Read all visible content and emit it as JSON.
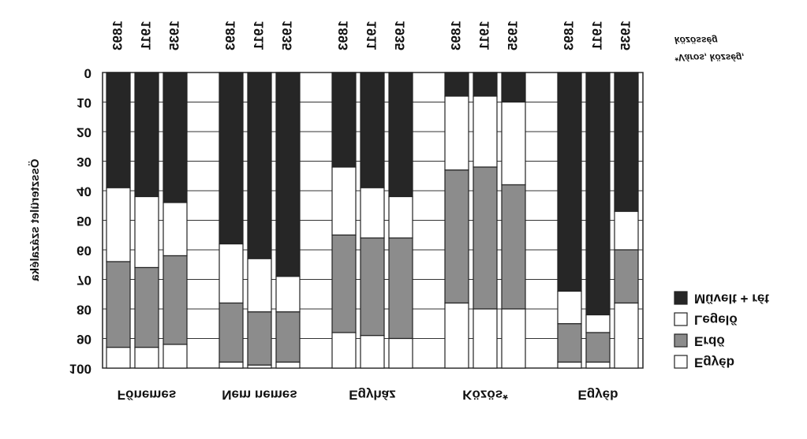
{
  "chart_data": {
    "type": "stacked_bar",
    "y_label": "Összterület százaléka",
    "note": [
      "*Város, község,",
      "közösség"
    ],
    "groups": [
      "Főnemes",
      "Nem nemes",
      "Egyház",
      "Közös*",
      "Egyéb"
    ],
    "categories": [
      "1893",
      "1911",
      "1935",
      "1893",
      "1911",
      "1935",
      "1893",
      "1911",
      "1935",
      "1893",
      "1911",
      "1935",
      "1893",
      "1911",
      "1935"
    ],
    "series": [
      {
        "name": "Művelt + rét",
        "color": "#262626",
        "values": [
          39,
          42,
          44,
          58,
          63,
          69,
          32,
          39,
          42,
          8,
          8,
          10,
          74,
          82,
          47
        ]
      },
      {
        "name": "Legelő",
        "color": "#ffffff",
        "values": [
          25,
          24,
          18,
          20,
          18,
          12,
          23,
          17,
          14,
          25,
          24,
          28,
          11,
          6,
          13
        ]
      },
      {
        "name": "Erdő",
        "color": "#8c8c8c",
        "values": [
          29,
          27,
          30,
          20,
          18,
          17,
          33,
          33,
          34,
          45,
          48,
          42,
          13,
          10,
          18
        ]
      },
      {
        "name": "Egyéb",
        "color": "#ffffff",
        "values": [
          7,
          7,
          8,
          2,
          1,
          2,
          12,
          11,
          10,
          22,
          20,
          20,
          2,
          2,
          22
        ]
      }
    ],
    "ylim": [
      0,
      100
    ],
    "yticks": [
      0,
      10,
      20,
      30,
      40,
      50,
      60,
      70,
      80,
      90,
      100
    ],
    "grid": true
  }
}
